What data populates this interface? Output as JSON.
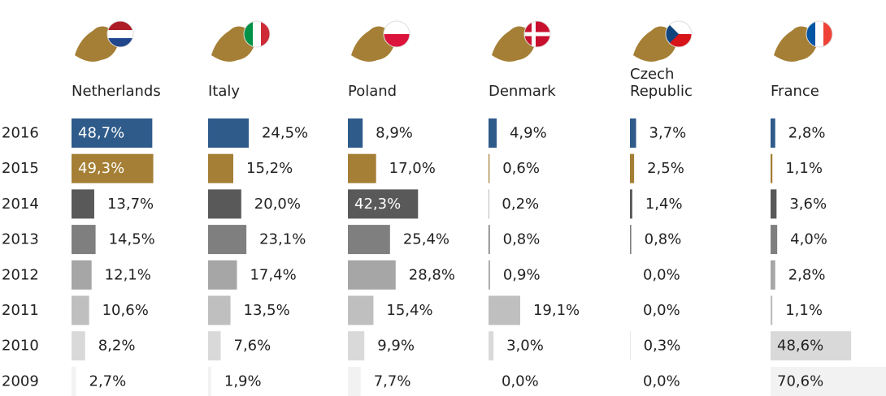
{
  "chart_data": {
    "type": "bar",
    "orientation": "horizontal",
    "categories": [
      "2016",
      "2015",
      "2014",
      "2013",
      "2012",
      "2011",
      "2010",
      "2009"
    ],
    "colors": [
      "#2e5b8a",
      "#a57f35",
      "#595959",
      "#7f7f7f",
      "#a6a6a6",
      "#bfbfbf",
      "#d9d9d9",
      "#f2f2f2"
    ],
    "series": [
      {
        "name": "Netherlands",
        "values": [
          48.7,
          49.3,
          13.7,
          14.5,
          12.1,
          10.6,
          8.2,
          2.7
        ],
        "value_labels": [
          "48,7%",
          "49,3%",
          "13,7%",
          "14,5%",
          "12,1%",
          "10,6%",
          "8,2%",
          "2,7%"
        ]
      },
      {
        "name": "Italy",
        "values": [
          24.5,
          15.2,
          20.0,
          23.1,
          17.4,
          13.5,
          7.6,
          1.9
        ],
        "value_labels": [
          "24,5%",
          "15,2%",
          "20,0%",
          "23,1%",
          "17,4%",
          "13,5%",
          "7,6%",
          "1,9%"
        ]
      },
      {
        "name": "Poland",
        "values": [
          8.9,
          17.0,
          42.3,
          25.4,
          28.8,
          15.4,
          9.9,
          7.7
        ],
        "value_labels": [
          "8,9%",
          "17,0%",
          "42,3%",
          "25,4%",
          "28,8%",
          "15,4%",
          "9,9%",
          "7,7%"
        ]
      },
      {
        "name": "Denmark",
        "values": [
          4.9,
          0.6,
          0.2,
          0.8,
          0.9,
          19.1,
          3.0,
          0.0
        ],
        "value_labels": [
          "4,9%",
          "0,6%",
          "0,2%",
          "0,8%",
          "0,9%",
          "19,1%",
          "3,0%",
          "0,0%"
        ]
      },
      {
        "name": "Czech Republic",
        "values": [
          3.7,
          2.5,
          1.4,
          0.8,
          0.0,
          0.0,
          0.3,
          0.0
        ],
        "value_labels": [
          "3,7%",
          "2,5%",
          "1,4%",
          "0,8%",
          "0,0%",
          "0,0%",
          "0,3%",
          "0,0%"
        ]
      },
      {
        "name": "France",
        "values": [
          2.8,
          1.1,
          3.6,
          4.0,
          2.8,
          1.1,
          48.6,
          70.6
        ],
        "value_labels": [
          "2,8%",
          "1,1%",
          "3,6%",
          "4,0%",
          "2,8%",
          "1,1%",
          "48,6%",
          "70,6%"
        ]
      }
    ]
  }
}
